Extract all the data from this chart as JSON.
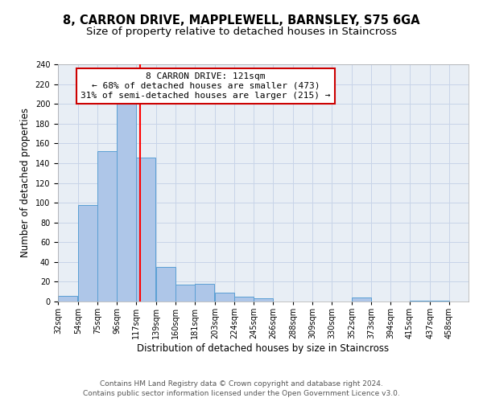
{
  "title": "8, CARRON DRIVE, MAPPLEWELL, BARNSLEY, S75 6GA",
  "subtitle": "Size of property relative to detached houses in Staincross",
  "xlabel": "Distribution of detached houses by size in Staincross",
  "ylabel": "Number of detached properties",
  "bar_left_edges": [
    32,
    54,
    75,
    96,
    117,
    139,
    160,
    181,
    203,
    224,
    245,
    266,
    288,
    309,
    330,
    352,
    373,
    394,
    415,
    437
  ],
  "bar_heights": [
    6,
    98,
    152,
    200,
    146,
    35,
    17,
    18,
    9,
    5,
    3,
    0,
    0,
    0,
    0,
    4,
    0,
    0,
    1,
    1
  ],
  "bin_width": 21,
  "tick_labels": [
    "32sqm",
    "54sqm",
    "75sqm",
    "96sqm",
    "117sqm",
    "139sqm",
    "160sqm",
    "181sqm",
    "203sqm",
    "224sqm",
    "245sqm",
    "266sqm",
    "288sqm",
    "309sqm",
    "330sqm",
    "352sqm",
    "373sqm",
    "394sqm",
    "415sqm",
    "437sqm",
    "458sqm"
  ],
  "tick_positions": [
    32,
    54,
    75,
    96,
    117,
    139,
    160,
    181,
    203,
    224,
    245,
    266,
    288,
    309,
    330,
    352,
    373,
    394,
    415,
    437,
    458
  ],
  "bar_color": "#aec6e8",
  "bar_edge_color": "#5a9fd4",
  "vline_x": 121,
  "vline_color": "#ff0000",
  "annotation_box_title": "8 CARRON DRIVE: 121sqm",
  "annotation_line1": "← 68% of detached houses are smaller (473)",
  "annotation_line2": "31% of semi-detached houses are larger (215) →",
  "annotation_box_color": "#cc0000",
  "ylim": [
    0,
    240
  ],
  "yticks": [
    0,
    20,
    40,
    60,
    80,
    100,
    120,
    140,
    160,
    180,
    200,
    220,
    240
  ],
  "xlim_left": 32,
  "xlim_right": 479,
  "footer_line1": "Contains HM Land Registry data © Crown copyright and database right 2024.",
  "footer_line2": "Contains public sector information licensed under the Open Government Licence v3.0.",
  "background_color": "#ffffff",
  "plot_bg_color": "#e8eef5",
  "grid_color": "#c8d4e8",
  "title_fontsize": 10.5,
  "subtitle_fontsize": 9.5,
  "axis_label_fontsize": 8.5,
  "tick_fontsize": 7,
  "annotation_fontsize": 8,
  "footer_fontsize": 6.5
}
